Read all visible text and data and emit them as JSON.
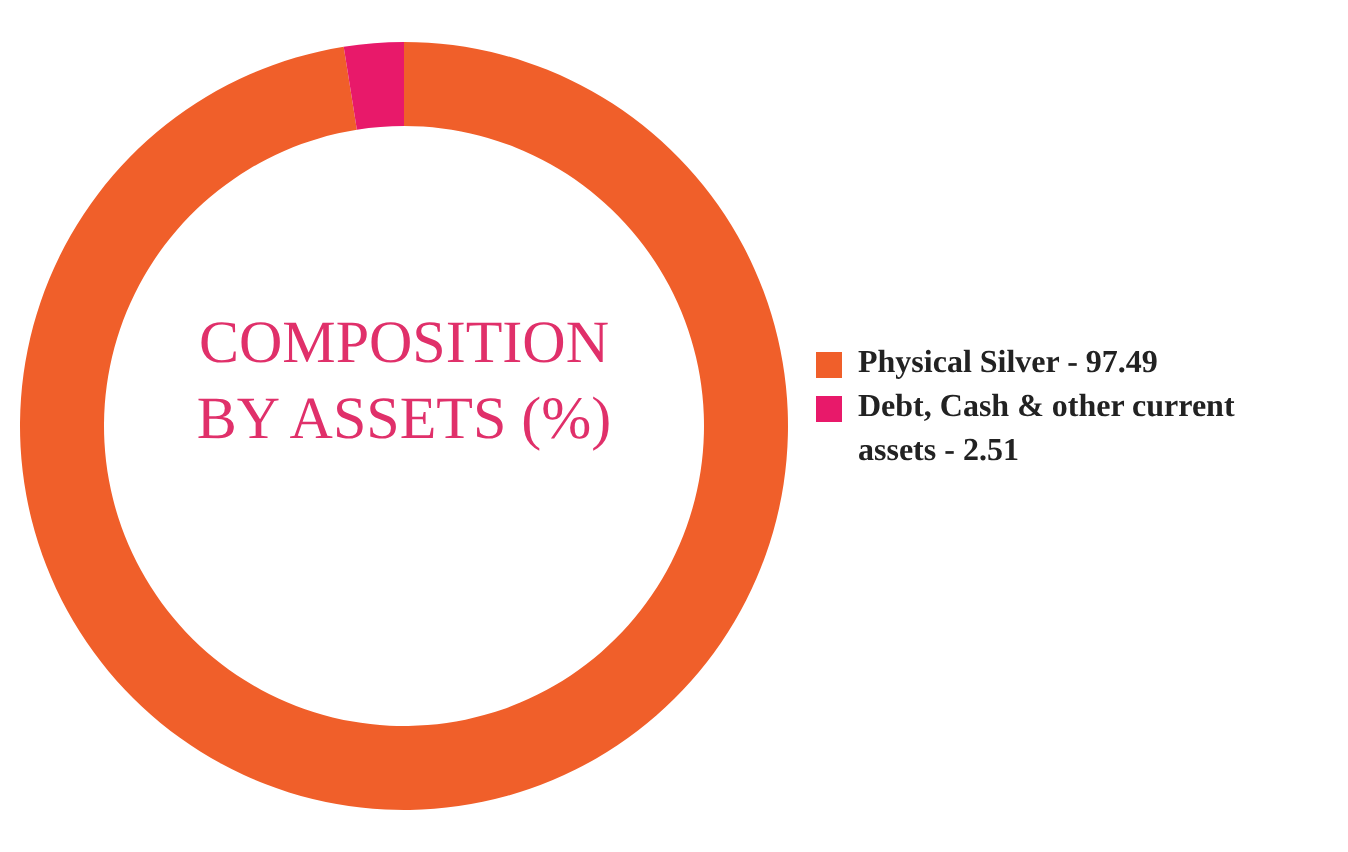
{
  "chart_data": {
    "type": "donut",
    "title": "COMPOSITION BY ASSETS (%)",
    "categories": [
      "Physical Silver - 97.49",
      "Debt, Cash & other current assets - 2.51"
    ],
    "values": [
      97.49,
      2.51
    ],
    "colors": [
      "#f05f2a",
      "#e8196a"
    ],
    "legend": "right"
  }
}
